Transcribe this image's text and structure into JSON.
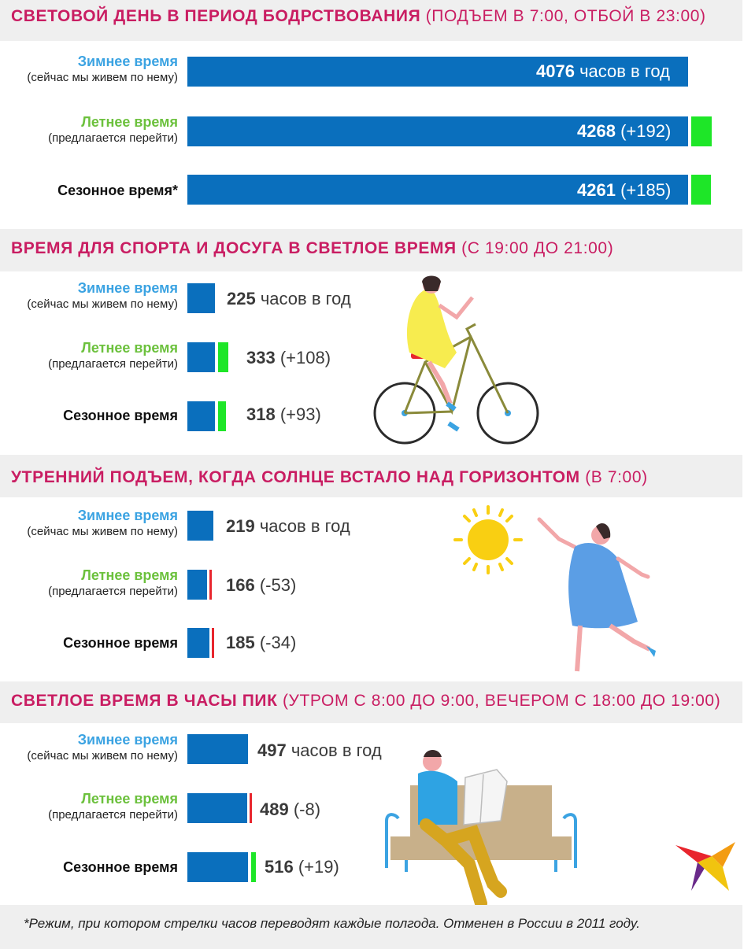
{
  "colors": {
    "title": "#c91d62",
    "bar": "#0a6fbd",
    "gain": "#1ee628",
    "loss": "#e8252d",
    "winter_label": "#3ba3e2",
    "summer_label": "#6cc13d",
    "season_label": "#111111",
    "header_bg": "#efefef"
  },
  "labels": {
    "winter": "Зимнее время",
    "winter_sub": "(сейчас мы живем по нему)",
    "summer": "Летнее время",
    "summer_sub": "(предлагается перейти)",
    "season": "Сезонное время",
    "season_star": "Сезонное время*"
  },
  "sections": [
    {
      "title": "СВЕТОВОЙ ДЕНЬ В ПЕРИОД БОДРСТВОВАНИЯ",
      "subtitle": "(ПОДЪЕМ В 7:00, ОТБОЙ В 23:00)",
      "rows": [
        {
          "label_key": "winter",
          "value": 4076,
          "value_text": "4076",
          "suffix": "часов в год",
          "delta": 0
        },
        {
          "label_key": "summer",
          "value": 4268,
          "value_text": "4268",
          "suffix": "(+192)",
          "delta": 192
        },
        {
          "label_key": "season",
          "value": 4261,
          "value_text": "4261",
          "suffix": "(+185)",
          "delta": 185
        }
      ]
    },
    {
      "title": "ВРЕМЯ ДЛЯ СПОРТА И ДОСУГА В СВЕТЛОЕ ВРЕМЯ",
      "subtitle": "(С 19:00 ДО 21:00)",
      "rows": [
        {
          "label_key": "winter",
          "value": 225,
          "value_text": "225",
          "suffix": "часов в год",
          "delta": 0
        },
        {
          "label_key": "summer",
          "value": 333,
          "value_text": "333",
          "suffix": "(+108)",
          "delta": 108
        },
        {
          "label_key": "season",
          "value": 318,
          "value_text": "318",
          "suffix": "(+93)",
          "delta": 93
        }
      ]
    },
    {
      "title": "УТРЕННИЙ ПОДЪЕМ, КОГДА СОЛНЦЕ ВСТАЛО НАД ГОРИЗОНТОМ",
      "subtitle": "(В 7:00)",
      "rows": [
        {
          "label_key": "winter",
          "value": 219,
          "value_text": "219",
          "suffix": "часов в год",
          "delta": 0
        },
        {
          "label_key": "summer",
          "value": 166,
          "value_text": "166",
          "suffix": "(-53)",
          "delta": -53
        },
        {
          "label_key": "season",
          "value": 185,
          "value_text": "185",
          "suffix": "(-34)",
          "delta": -34
        }
      ]
    },
    {
      "title": "СВЕТЛОЕ ВРЕМЯ В ЧАСЫ ПИК",
      "subtitle": "(УТРОМ С 8:00 ДО 9:00, ВЕЧЕРОМ С 18:00 ДО 19:00)",
      "rows": [
        {
          "label_key": "winter",
          "value": 497,
          "value_text": "497",
          "suffix": "часов в год",
          "delta": 0
        },
        {
          "label_key": "summer",
          "value": 489,
          "value_text": "489",
          "suffix": "(-8)",
          "delta": -8
        },
        {
          "label_key": "season",
          "value": 516,
          "value_text": "516",
          "suffix": "(+19)",
          "delta": 19
        }
      ]
    }
  ],
  "footnote": "*Режим, при котором стрелки часов переводят каждые полгода. Отменен в России в 2011 году.",
  "chart_data": [
    {
      "type": "bar",
      "title": "СВЕТОВОЙ ДЕНЬ В ПЕРИОД БОДРСТВОВАНИЯ",
      "subtitle": "(ПОДЪЕМ В 7:00, ОТБОЙ В 23:00)",
      "categories": [
        "Зимнее время",
        "Летнее время",
        "Сезонное время"
      ],
      "values": [
        4076,
        4268,
        4261
      ],
      "unit": "часов в год",
      "deltas": [
        0,
        192,
        185
      ]
    },
    {
      "type": "bar",
      "title": "ВРЕМЯ ДЛЯ СПОРТА И ДОСУГА В СВЕТЛОЕ ВРЕМЯ",
      "subtitle": "(С 19:00 ДО 21:00)",
      "categories": [
        "Зимнее время",
        "Летнее время",
        "Сезонное время"
      ],
      "values": [
        225,
        333,
        318
      ],
      "unit": "часов в год",
      "deltas": [
        0,
        108,
        93
      ]
    },
    {
      "type": "bar",
      "title": "УТРЕННИЙ ПОДЪЕМ, КОГДА СОЛНЦЕ ВСТАЛО НАД ГОРИЗОНТОМ",
      "subtitle": "(В 7:00)",
      "categories": [
        "Зимнее время",
        "Летнее время",
        "Сезонное время"
      ],
      "values": [
        219,
        166,
        185
      ],
      "unit": "часов в год",
      "deltas": [
        0,
        -53,
        -34
      ]
    },
    {
      "type": "bar",
      "title": "СВЕТЛОЕ ВРЕМЯ В ЧАСЫ ПИК",
      "subtitle": "(УТРОМ С 8:00 ДО 9:00, ВЕЧЕРОМ С 18:00 ДО 19:00)",
      "categories": [
        "Зимнее время",
        "Летнее время",
        "Сезонное время"
      ],
      "values": [
        497,
        489,
        516
      ],
      "unit": "часов в год",
      "deltas": [
        0,
        -8,
        19
      ]
    }
  ]
}
